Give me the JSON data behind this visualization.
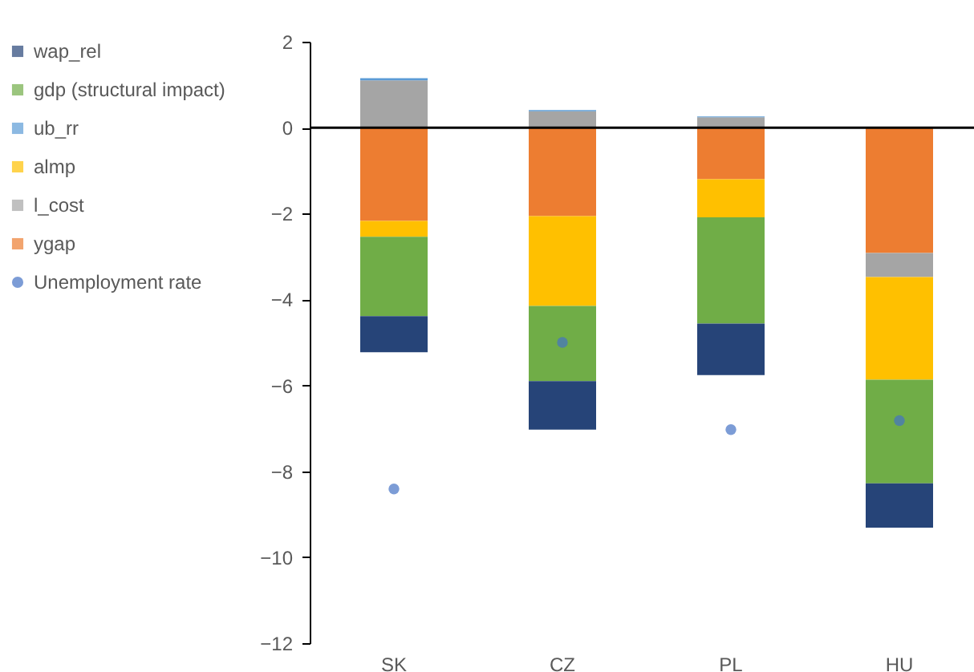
{
  "chart_data": {
    "type": "bar",
    "stacked": true,
    "categories": [
      "SK",
      "CZ",
      "PL",
      "HU"
    ],
    "series": [
      {
        "name": "ygap",
        "color": "#ed7d31",
        "values": [
          -2.17,
          -2.06,
          -1.2,
          -2.92
        ]
      },
      {
        "name": "l_cost",
        "color": "#a5a5a5",
        "values": [
          1.1,
          0.38,
          0.24,
          -0.56
        ]
      },
      {
        "name": "almp",
        "color": "#ffc000",
        "values": [
          -0.37,
          -2.09,
          -0.89,
          -2.39
        ]
      },
      {
        "name": "ub_rr",
        "color": "#5b9bd5",
        "values": [
          0.05,
          0.03,
          0.02,
          0
        ]
      },
      {
        "name": "gdp (structural impact)",
        "color": "#70ad47",
        "values": [
          -1.85,
          -1.75,
          -2.47,
          -2.41
        ]
      },
      {
        "name": "wap_rel",
        "color": "#264478",
        "values": [
          -0.84,
          -1.13,
          -1.2,
          -1.03
        ]
      },
      {
        "name": "Unemployment rate",
        "type": "scatter",
        "color": "#4472c4",
        "marker": "circle",
        "values": [
          -8.41,
          -5.0,
          -7.03,
          -6.82
        ]
      }
    ],
    "ylim": [
      -12,
      2
    ],
    "yticks": [
      -12,
      -10,
      -8,
      -6,
      -4,
      -2,
      0,
      2
    ],
    "grid": false,
    "legend": "left",
    "ref_lines": [
      {
        "axis": "y",
        "value": 0,
        "color": "#000000"
      }
    ]
  }
}
